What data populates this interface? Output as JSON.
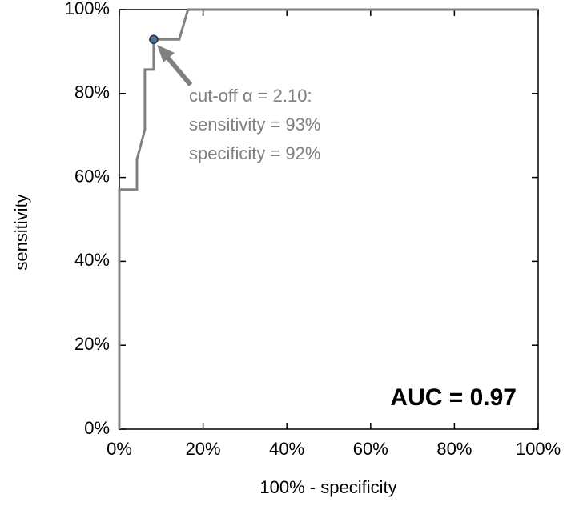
{
  "chart_data": {
    "type": "line",
    "x": [
      0,
      0,
      4.2,
      4.2,
      6.1,
      6.1,
      8.2,
      8.2,
      14.3,
      16.4,
      100
    ],
    "values": [
      0,
      57.1,
      57.1,
      64.3,
      71.4,
      85.7,
      85.7,
      92.9,
      92.9,
      100,
      100
    ],
    "color": "#808080",
    "xlim": [
      0,
      100
    ],
    "ylim": [
      0,
      100
    ],
    "xticks": [
      {
        "value": 0,
        "label": "0%"
      },
      {
        "value": 20,
        "label": "20%"
      },
      {
        "value": 40,
        "label": "40%"
      },
      {
        "value": 60,
        "label": "60%"
      },
      {
        "value": 80,
        "label": "80%"
      },
      {
        "value": 100,
        "label": "100%"
      }
    ],
    "yticks": [
      {
        "value": 0,
        "label": "0%"
      },
      {
        "value": 20,
        "label": "20%"
      },
      {
        "value": 40,
        "label": "40%"
      },
      {
        "value": 60,
        "label": "60%"
      },
      {
        "value": 80,
        "label": "80%"
      },
      {
        "value": 100,
        "label": "100%"
      }
    ],
    "xlabel": "100% - specificity",
    "ylabel": "sensitivity",
    "marker": {
      "x": 8.2,
      "y": 92.9,
      "color": "#4f6f95"
    },
    "annotation": [
      "cut-off α = 2.10:",
      "sensitivity = 93%",
      "specificity = 92%"
    ],
    "auc_label": "AUC = 0.97"
  }
}
